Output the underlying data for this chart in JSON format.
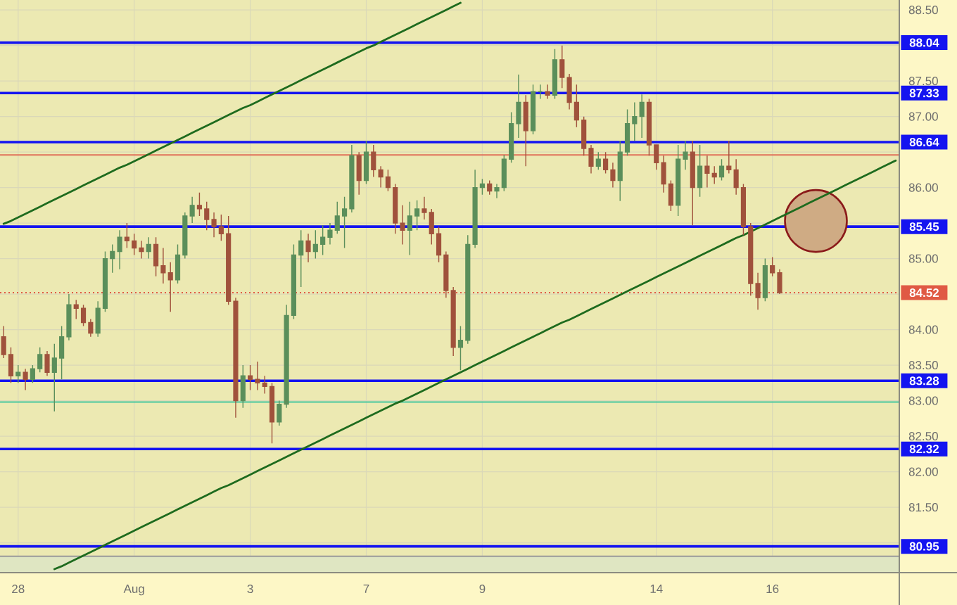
{
  "chart_data": {
    "type": "candlestick",
    "categories": [
      null,
      null,
      "28",
      null,
      null,
      null,
      null,
      null,
      null,
      null,
      null,
      null,
      null,
      null,
      null,
      null,
      null,
      null,
      "Aug",
      null,
      null,
      null,
      null,
      null,
      null,
      null,
      null,
      null,
      null,
      null,
      null,
      null,
      null,
      null,
      "3",
      null,
      null,
      null,
      null,
      null,
      null,
      null,
      null,
      null,
      null,
      null,
      null,
      null,
      null,
      null,
      "7",
      null,
      null,
      null,
      null,
      null,
      null,
      null,
      null,
      null,
      null,
      null,
      null,
      null,
      null,
      null,
      "9",
      null,
      null,
      null,
      null,
      null,
      null,
      null,
      null,
      null,
      null,
      null,
      null,
      null,
      null,
      null,
      null,
      null,
      null,
      null,
      null,
      null,
      null,
      null,
      "14",
      null,
      null,
      null,
      null,
      null,
      null,
      null,
      null,
      null,
      null,
      null,
      null,
      null,
      null,
      null,
      "16",
      null,
      null,
      null,
      null,
      null,
      null,
      null,
      null,
      null,
      null,
      null,
      null,
      null,
      null,
      null,
      null,
      null
    ],
    "ohlc": [
      [
        83.9,
        84.05,
        83.6,
        83.65
      ],
      [
        83.65,
        83.75,
        83.25,
        83.35
      ],
      [
        83.35,
        83.5,
        83.25,
        83.4
      ],
      [
        83.4,
        83.45,
        83.15,
        83.3
      ],
      [
        83.3,
        83.5,
        83.25,
        83.45
      ],
      [
        83.45,
        83.75,
        83.4,
        83.65
      ],
      [
        83.65,
        83.7,
        83.35,
        83.4
      ],
      [
        83.4,
        83.8,
        82.85,
        83.6
      ],
      [
        83.6,
        84.05,
        83.3,
        83.9
      ],
      [
        83.9,
        84.5,
        83.85,
        84.35
      ],
      [
        84.35,
        84.42,
        84.15,
        84.3
      ],
      [
        84.3,
        84.35,
        84.05,
        84.1
      ],
      [
        84.1,
        84.15,
        83.9,
        83.95
      ],
      [
        83.95,
        84.4,
        83.9,
        84.3
      ],
      [
        84.3,
        85.1,
        84.25,
        85.0
      ],
      [
        85.0,
        85.2,
        84.8,
        85.1
      ],
      [
        85.1,
        85.4,
        84.85,
        85.3
      ],
      [
        85.3,
        85.5,
        85.15,
        85.25
      ],
      [
        85.25,
        85.35,
        85.05,
        85.15
      ],
      [
        85.15,
        85.25,
        85.0,
        85.1
      ],
      [
        85.1,
        85.3,
        85.0,
        85.2
      ],
      [
        85.2,
        85.3,
        84.75,
        84.9
      ],
      [
        84.9,
        85.15,
        84.65,
        84.8
      ],
      [
        84.8,
        84.95,
        84.25,
        84.7
      ],
      [
        84.7,
        85.2,
        84.65,
        85.05
      ],
      [
        85.05,
        85.65,
        85.0,
        85.6
      ],
      [
        85.6,
        85.87,
        85.5,
        85.75
      ],
      [
        85.75,
        85.93,
        85.6,
        85.7
      ],
      [
        85.7,
        85.8,
        85.4,
        85.55
      ],
      [
        85.55,
        85.65,
        85.3,
        85.45
      ],
      [
        85.45,
        85.62,
        85.25,
        85.35
      ],
      [
        85.35,
        85.6,
        84.35,
        84.4
      ],
      [
        84.4,
        84.45,
        82.76,
        83.0
      ],
      [
        83.0,
        83.5,
        82.9,
        83.35
      ],
      [
        83.35,
        83.5,
        83.15,
        83.3
      ],
      [
        83.3,
        83.55,
        83.15,
        83.25
      ],
      [
        83.25,
        83.35,
        83.1,
        83.2
      ],
      [
        83.2,
        83.25,
        82.4,
        82.7
      ],
      [
        82.7,
        83.0,
        82.65,
        82.95
      ],
      [
        82.95,
        84.35,
        82.9,
        84.2
      ],
      [
        84.2,
        85.2,
        84.15,
        85.05
      ],
      [
        85.05,
        85.4,
        84.6,
        85.25
      ],
      [
        85.25,
        85.35,
        84.95,
        85.1
      ],
      [
        85.1,
        85.4,
        85.0,
        85.2
      ],
      [
        85.2,
        85.47,
        85.05,
        85.3
      ],
      [
        85.3,
        85.5,
        85.2,
        85.4
      ],
      [
        85.4,
        85.8,
        85.35,
        85.6
      ],
      [
        85.6,
        85.87,
        85.15,
        85.7
      ],
      [
        85.7,
        86.6,
        85.65,
        86.45
      ],
      [
        86.45,
        86.5,
        85.9,
        86.1
      ],
      [
        86.1,
        86.66,
        86.05,
        86.5
      ],
      [
        86.5,
        86.6,
        86.15,
        86.25
      ],
      [
        86.25,
        86.3,
        86.0,
        86.15
      ],
      [
        86.15,
        86.25,
        85.95,
        86.0
      ],
      [
        86.0,
        86.05,
        85.35,
        85.5
      ],
      [
        85.5,
        85.75,
        85.2,
        85.4
      ],
      [
        85.4,
        85.8,
        85.05,
        85.6
      ],
      [
        85.6,
        85.82,
        85.4,
        85.7
      ],
      [
        85.7,
        85.87,
        85.55,
        85.65
      ],
      [
        85.65,
        85.7,
        85.2,
        85.35
      ],
      [
        85.35,
        85.45,
        84.95,
        85.05
      ],
      [
        85.05,
        85.1,
        84.45,
        84.55
      ],
      [
        84.55,
        84.6,
        83.63,
        83.75
      ],
      [
        83.75,
        84.05,
        83.43,
        83.85
      ],
      [
        83.85,
        85.33,
        83.8,
        85.2
      ],
      [
        85.2,
        86.25,
        85.15,
        86.0
      ],
      [
        86.0,
        86.12,
        85.9,
        86.05
      ],
      [
        86.05,
        86.1,
        85.9,
        85.95
      ],
      [
        85.95,
        86.05,
        85.85,
        86.0
      ],
      [
        86.0,
        86.46,
        85.95,
        86.4
      ],
      [
        86.4,
        87.06,
        86.35,
        86.9
      ],
      [
        86.9,
        87.59,
        86.7,
        87.2
      ],
      [
        87.2,
        87.3,
        86.3,
        86.8
      ],
      [
        86.8,
        87.45,
        86.75,
        87.35
      ],
      [
        87.35,
        87.45,
        87.25,
        87.35
      ],
      [
        87.35,
        87.45,
        87.25,
        87.3
      ],
      [
        87.3,
        87.95,
        87.25,
        87.8
      ],
      [
        87.8,
        88.0,
        87.4,
        87.55
      ],
      [
        87.55,
        87.6,
        87.1,
        87.2
      ],
      [
        87.2,
        87.45,
        86.85,
        86.95
      ],
      [
        86.95,
        87.0,
        86.45,
        86.55
      ],
      [
        86.55,
        86.6,
        86.2,
        86.3
      ],
      [
        86.3,
        86.5,
        86.25,
        86.4
      ],
      [
        86.4,
        86.5,
        86.2,
        86.25
      ],
      [
        86.25,
        86.35,
        86.0,
        86.1
      ],
      [
        86.1,
        86.66,
        85.81,
        86.5
      ],
      [
        86.5,
        87.1,
        86.45,
        86.9
      ],
      [
        86.9,
        87.2,
        86.66,
        87.0
      ],
      [
        87.0,
        87.31,
        86.7,
        87.2
      ],
      [
        87.2,
        87.25,
        86.45,
        86.6
      ],
      [
        86.6,
        86.6,
        86.25,
        86.35
      ],
      [
        86.35,
        86.45,
        85.93,
        86.05
      ],
      [
        86.05,
        86.1,
        85.67,
        85.75
      ],
      [
        85.75,
        86.6,
        85.6,
        86.4
      ],
      [
        86.4,
        86.66,
        86.25,
        86.5
      ],
      [
        86.5,
        86.66,
        85.47,
        86.0
      ],
      [
        86.0,
        86.6,
        85.87,
        86.3
      ],
      [
        86.3,
        86.45,
        86.0,
        86.2
      ],
      [
        86.2,
        86.3,
        86.05,
        86.15
      ],
      [
        86.15,
        86.4,
        86.1,
        86.3
      ],
      [
        86.3,
        86.66,
        86.2,
        86.25
      ],
      [
        86.25,
        86.4,
        85.9,
        86.0
      ],
      [
        86.0,
        86.05,
        85.33,
        85.45
      ],
      [
        85.45,
        85.5,
        84.48,
        84.65
      ],
      [
        84.65,
        84.8,
        84.28,
        84.45
      ],
      [
        84.45,
        85.0,
        84.4,
        84.9
      ],
      [
        84.9,
        85.02,
        84.75,
        84.8
      ],
      [
        84.8,
        84.85,
        84.5,
        84.52
      ],
      null,
      null,
      null,
      null,
      null,
      null,
      null,
      null,
      null,
      null,
      null,
      null,
      null,
      null,
      null,
      null
    ],
    "colors": [
      "#a0523c",
      "#a0523c",
      "#5b8f5b",
      "#a0523c",
      "#5b8f5b",
      "#5b8f5b",
      "#a0523c",
      "#5b8f5b",
      "#5b8f5b",
      "#5b8f5b",
      "#a0523c",
      "#a0523c",
      "#a0523c",
      "#5b8f5b",
      "#5b8f5b",
      "#5b8f5b",
      "#5b8f5b",
      "#a0523c",
      "#a0523c",
      "#a0523c",
      "#5b8f5b",
      "#a0523c",
      "#a0523c",
      "#a0523c",
      "#5b8f5b",
      "#5b8f5b",
      "#5b8f5b",
      "#a0523c",
      "#a0523c",
      "#a0523c",
      "#a0523c",
      "#a0523c",
      "#a0523c",
      "#5b8f5b",
      "#a0523c",
      "#a0523c",
      "#a0523c",
      "#a0523c",
      "#5b8f5b",
      "#5b8f5b",
      "#5b8f5b",
      "#5b8f5b",
      "#a0523c",
      "#5b8f5b",
      "#5b8f5b",
      "#5b8f5b",
      "#5b8f5b",
      "#5b8f5b",
      "#5b8f5b",
      "#a0523c",
      "#5b8f5b",
      "#a0523c",
      "#a0523c",
      "#a0523c",
      "#a0523c",
      "#a0523c",
      "#5b8f5b",
      "#5b8f5b",
      "#a0523c",
      "#a0523c",
      "#a0523c",
      "#a0523c",
      "#a0523c",
      "#5b8f5b",
      "#5b8f5b",
      "#5b8f5b",
      "#5b8f5b",
      "#a0523c",
      "#5b8f5b",
      "#5b8f5b",
      "#5b8f5b",
      "#5b8f5b",
      "#a0523c",
      "#5b8f5b",
      "#5b8f5b",
      "#a0523c",
      "#5b8f5b",
      "#a0523c",
      "#a0523c",
      "#a0523c",
      "#a0523c",
      "#a0523c",
      "#5b8f5b",
      "#a0523c",
      "#a0523c",
      "#5b8f5b",
      "#5b8f5b",
      "#5b8f5b",
      "#5b8f5b",
      "#a0523c",
      "#a0523c",
      "#a0523c",
      "#a0523c",
      "#5b8f5b",
      "#5b8f5b",
      "#a0523c",
      "#5b8f5b",
      "#a0523c",
      "#a0523c",
      "#5b8f5b",
      "#a0523c",
      "#a0523c",
      "#a0523c",
      "#a0523c",
      "#a0523c",
      "#5b8f5b",
      "#a0523c",
      "#a0523c",
      null,
      null,
      null,
      null,
      null,
      null,
      null,
      null,
      null,
      null,
      null,
      null,
      null,
      null,
      null,
      null
    ],
    "series": [
      {
        "type": "line",
        "color": "#1e6b1e",
        "values": [
          null,
          null,
          null,
          null,
          null,
          null,
          null,
          80.63,
          80.67,
          80.72,
          80.77,
          80.82,
          80.87,
          80.92,
          80.97,
          81.02,
          81.07,
          81.12,
          81.17,
          81.22,
          81.27,
          81.32,
          81.37,
          81.42,
          81.47,
          81.52,
          81.57,
          81.62,
          81.67,
          81.72,
          81.77,
          81.81,
          81.86,
          81.91,
          81.96,
          82.01,
          82.06,
          82.11,
          82.16,
          82.21,
          82.26,
          82.31,
          82.36,
          82.41,
          82.46,
          82.51,
          82.56,
          82.61,
          82.66,
          82.71,
          82.76,
          82.81,
          82.86,
          82.91,
          82.96,
          83.0,
          83.05,
          83.1,
          83.15,
          83.2,
          83.25,
          83.3,
          83.35,
          83.4,
          83.45,
          83.5,
          83.55,
          83.6,
          83.65,
          83.7,
          83.75,
          83.8,
          83.85,
          83.9,
          83.95,
          84.0,
          84.05,
          84.1,
          84.14,
          84.19,
          84.24,
          84.29,
          84.34,
          84.39,
          84.44,
          84.49,
          84.54,
          84.59,
          84.64,
          84.69,
          84.74,
          84.79,
          84.84,
          84.89,
          84.94,
          84.99,
          85.04,
          85.09,
          85.14,
          85.19,
          85.24,
          85.29,
          85.33,
          85.38,
          85.43,
          85.48,
          85.53,
          85.58,
          85.63,
          85.68,
          85.73,
          85.78,
          85.83,
          85.88,
          85.93,
          85.98,
          86.03,
          86.08,
          86.13,
          86.18,
          86.23,
          86.28,
          86.33,
          86.38
        ]
      },
      {
        "type": "line",
        "color": "#1e6b1e",
        "values": [
          85.49,
          85.53,
          85.58,
          85.63,
          85.68,
          85.73,
          85.78,
          85.83,
          85.88,
          85.93,
          85.98,
          86.03,
          86.08,
          86.13,
          86.18,
          86.23,
          86.28,
          86.32,
          86.37,
          86.42,
          86.47,
          86.52,
          86.57,
          86.62,
          86.67,
          86.72,
          86.77,
          86.82,
          86.87,
          86.92,
          86.97,
          87.02,
          87.07,
          87.12,
          87.16,
          87.21,
          87.26,
          87.31,
          87.36,
          87.41,
          87.46,
          87.51,
          87.56,
          87.61,
          87.66,
          87.71,
          87.76,
          87.81,
          87.86,
          87.91,
          87.96,
          88.0,
          88.05,
          88.1,
          88.15,
          88.2,
          88.25,
          88.3,
          88.35,
          88.4,
          88.45,
          88.5,
          88.55,
          88.6,
          null,
          null,
          null,
          null,
          null,
          null,
          null,
          null,
          null,
          null,
          null,
          null,
          null,
          null,
          null,
          null,
          null,
          null,
          null,
          null,
          null,
          null,
          null,
          null,
          null,
          null,
          null,
          null,
          null,
          null,
          null,
          null,
          null,
          null,
          null,
          null,
          null,
          null,
          null,
          null,
          null,
          null,
          null,
          null,
          null,
          null,
          null,
          null,
          null,
          null,
          null,
          null,
          null,
          null,
          null,
          null,
          null,
          null,
          null,
          null
        ]
      },
      {
        "type": "bubble",
        "color": "#8b1a1a",
        "values": [
          null,
          null,
          null,
          null,
          null,
          null,
          null,
          null,
          null,
          null,
          null,
          null,
          null,
          null,
          null,
          null,
          null,
          null,
          null,
          null,
          null,
          null,
          null,
          null,
          null,
          null,
          null,
          null,
          null,
          null,
          null,
          null,
          null,
          null,
          null,
          null,
          null,
          null,
          null,
          null,
          null,
          null,
          null,
          null,
          null,
          null,
          null,
          null,
          null,
          null,
          null,
          null,
          null,
          null,
          null,
          null,
          null,
          null,
          null,
          null,
          null,
          null,
          null,
          null,
          null,
          null,
          null,
          null,
          null,
          null,
          null,
          null,
          null,
          null,
          null,
          null,
          null,
          null,
          null,
          null,
          null,
          null,
          null,
          null,
          null,
          null,
          null,
          null,
          null,
          null,
          null,
          null,
          null,
          null,
          null,
          null,
          null,
          null,
          null,
          null,
          null,
          null,
          null,
          null,
          null,
          null,
          null,
          null,
          null,
          null,
          null,
          null,
          85.53,
          null,
          null,
          null,
          null,
          null,
          null,
          null,
          null,
          null,
          null,
          null
        ],
        "sizes": [
          null,
          null,
          null,
          null,
          null,
          null,
          null,
          null,
          null,
          null,
          null,
          null,
          null,
          null,
          null,
          null,
          null,
          null,
          null,
          null,
          null,
          null,
          null,
          null,
          null,
          null,
          null,
          null,
          null,
          null,
          null,
          null,
          null,
          null,
          null,
          null,
          null,
          null,
          null,
          null,
          null,
          null,
          null,
          null,
          null,
          null,
          null,
          null,
          null,
          null,
          null,
          null,
          null,
          null,
          null,
          null,
          null,
          null,
          null,
          null,
          null,
          null,
          null,
          null,
          null,
          null,
          null,
          null,
          null,
          null,
          null,
          null,
          null,
          null,
          null,
          null,
          null,
          null,
          null,
          null,
          null,
          null,
          null,
          null,
          null,
          null,
          null,
          null,
          null,
          null,
          null,
          null,
          null,
          null,
          null,
          null,
          null,
          null,
          null,
          null,
          null,
          null,
          null,
          null,
          null,
          null,
          null,
          null,
          null,
          null,
          null,
          null,
          1,
          null,
          null,
          null,
          null,
          null,
          null,
          null,
          null,
          null,
          null,
          null
        ]
      }
    ],
    "ylim": [
      80.58,
      88.64
    ],
    "yticks": [
      {
        "value": 81,
        "label": null
      },
      {
        "value": 81.5,
        "label": "81.50"
      },
      {
        "value": 82,
        "label": "82.00"
      },
      {
        "value": 82.5,
        "label": "82.50"
      },
      {
        "value": 83,
        "label": "83.00"
      },
      {
        "value": 83.5,
        "label": "83.50"
      },
      {
        "value": 84,
        "label": "84.00"
      },
      {
        "value": 84.5,
        "label": null
      },
      {
        "value": 85,
        "label": "85.00"
      },
      {
        "value": 85.5,
        "label": null
      },
      {
        "value": 86,
        "label": "86.00"
      },
      {
        "value": 86.5,
        "label": null
      },
      {
        "value": 87,
        "label": "87.00"
      },
      {
        "value": 87.5,
        "label": "87.50"
      },
      {
        "value": 88,
        "label": null
      },
      {
        "value": 88.5,
        "label": "88.50"
      }
    ],
    "grid": true,
    "bands": [
      {
        "axis": "y",
        "from": 80.58,
        "to": 80.81,
        "color": "#dfe6c2"
      }
    ],
    "ref_lines": [
      {
        "axis": "y",
        "value": 88.04,
        "label": "88.04",
        "color": "#1414f0"
      },
      {
        "axis": "y",
        "value": 87.33,
        "label": "87.33",
        "color": "#1414f0"
      },
      {
        "axis": "y",
        "value": 86.64,
        "label": "86.64",
        "color": "#1414f0"
      },
      {
        "axis": "y",
        "value": 86.46,
        "color": "#e0705a"
      },
      {
        "axis": "y",
        "value": 85.45,
        "label": "85.45",
        "color": "#1414f0"
      },
      {
        "axis": "y",
        "value": 84.52,
        "label": "84.52",
        "color": "#e05a44",
        "line_style": "dotted"
      },
      {
        "axis": "y",
        "value": 83.28,
        "label": "83.28",
        "color": "#1414f0"
      },
      {
        "axis": "y",
        "value": 82.98,
        "color": "#48c8a0"
      },
      {
        "axis": "y",
        "value": 82.32,
        "label": "82.32",
        "color": "#1414f0"
      },
      {
        "axis": "y",
        "value": 80.95,
        "label": "80.95",
        "color": "#1414f0"
      },
      {
        "axis": "y",
        "value": 80.81,
        "color": "#9a9a9a"
      }
    ]
  }
}
